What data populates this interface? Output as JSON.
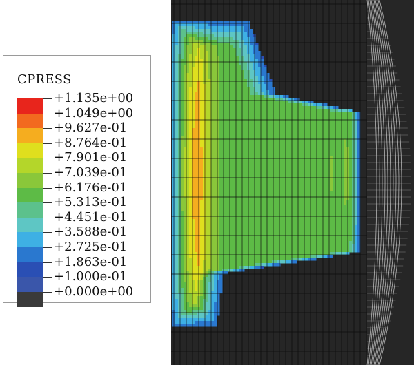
{
  "legend": {
    "title": "CPRESS",
    "labels": [
      "+1.135e+00",
      "+1.049e+00",
      "+9.627e-01",
      "+8.764e-01",
      "+7.901e-01",
      "+7.039e-01",
      "+6.176e-01",
      "+5.313e-01",
      "+4.451e-01",
      "+3.588e-01",
      "+2.725e-01",
      "+1.863e-01",
      "+1.000e-01",
      "+0.000e+00"
    ],
    "colors": [
      "#e8251c",
      "#f26a1f",
      "#f5ad1f",
      "#dfdf1e",
      "#b4d62a",
      "#8ac73a",
      "#5dbb46",
      "#5cc18c",
      "#5ec6c4",
      "#3eb0e4",
      "#2a78cf",
      "#2a4fb4",
      "#3a56aa",
      "#3a3a3a"
    ]
  },
  "model": {
    "background_color": "#262626",
    "grid_color": "#0c0c0c",
    "edge_color": "#cfcfcf"
  }
}
